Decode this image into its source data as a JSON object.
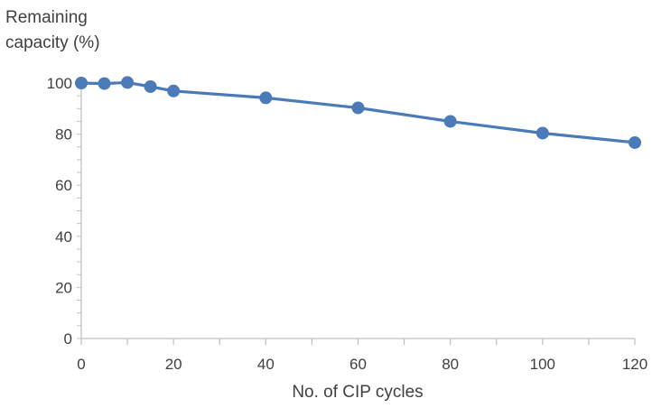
{
  "chart_data": {
    "type": "line",
    "ylabel": "Remaining\ncapacity (%)",
    "xlabel": "No. of CIP cycles",
    "xlim": [
      0,
      120
    ],
    "ylim": [
      0,
      100
    ],
    "xticks": [
      0,
      20,
      40,
      60,
      80,
      100,
      120
    ],
    "yticks": [
      0,
      20,
      40,
      60,
      80,
      100
    ],
    "grid": false,
    "legend": "none",
    "series": [
      {
        "x": [
          0,
          5,
          10,
          15,
          20,
          40,
          60,
          80,
          100,
          120
        ],
        "y": [
          100,
          99.8,
          100.2,
          98.6,
          96.9,
          94.2,
          90.3,
          85.0,
          80.4,
          76.7
        ],
        "color": "#4a7ab8"
      }
    ]
  }
}
